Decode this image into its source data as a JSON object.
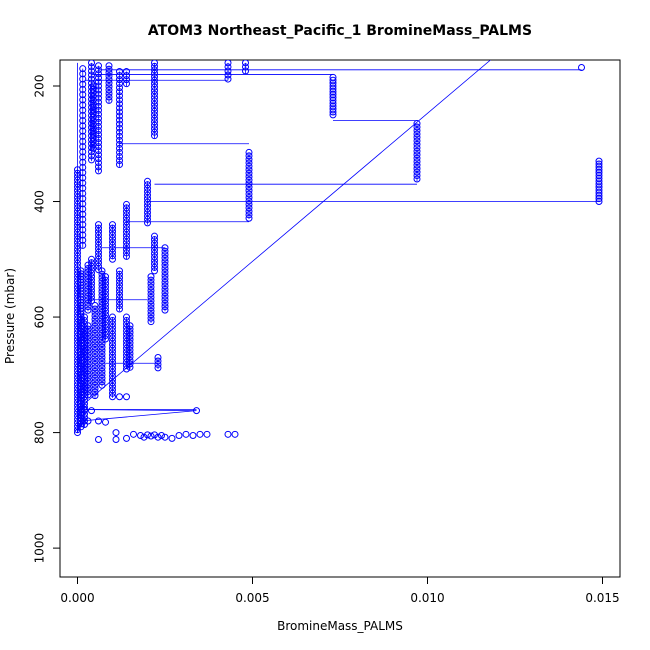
{
  "chart_data": {
    "type": "scatter",
    "title": "ATOM3 Northeast_Pacific_1 BromineMass_PALMS",
    "xlabel": "BromineMass_PALMS",
    "ylabel": "Pressure (mbar)",
    "xlim": [
      -0.0005,
      0.0155
    ],
    "ylim": [
      1050,
      155
    ],
    "y_reversed": true,
    "x_ticks": [
      0.0,
      0.005,
      0.01,
      0.015
    ],
    "x_tick_labels": [
      "0.000",
      "0.005",
      "0.010",
      "0.015"
    ],
    "y_ticks": [
      200,
      400,
      600,
      800,
      1000
    ],
    "y_tick_labels": [
      "200",
      "400",
      "600",
      "800",
      "1000"
    ],
    "color": "#0000ff",
    "marker": "open-circle",
    "connected_line": true,
    "grid": false,
    "series_columns": [
      {
        "x": 0.0,
        "p_from": 345,
        "p_to": 800,
        "step": 6
      },
      {
        "x": 0.0001,
        "p_from": 520,
        "p_to": 790,
        "step": 5
      },
      {
        "x": 0.0002,
        "p_from": 600,
        "p_to": 790,
        "step": 6
      },
      {
        "x": 0.00015,
        "p_from": 170,
        "p_to": 480,
        "step": 9
      },
      {
        "x": 0.0003,
        "p_from": 615,
        "p_to": 740,
        "step": 6
      },
      {
        "x": 0.0004,
        "p_from": 160,
        "p_to": 330,
        "step": 7
      },
      {
        "x": 0.00045,
        "p_from": 200,
        "p_to": 310,
        "step": 6
      },
      {
        "x": 0.0003,
        "p_from": 510,
        "p_to": 590,
        "step": 6
      },
      {
        "x": 0.0004,
        "p_from": 500,
        "p_to": 575,
        "step": 6
      },
      {
        "x": 0.0005,
        "p_from": 580,
        "p_to": 740,
        "step": 6
      },
      {
        "x": 0.0006,
        "p_from": 165,
        "p_to": 350,
        "step": 7
      },
      {
        "x": 0.0006,
        "p_from": 440,
        "p_to": 520,
        "step": 6
      },
      {
        "x": 0.0007,
        "p_from": 520,
        "p_to": 720,
        "step": 6
      },
      {
        "x": 0.0008,
        "p_from": 530,
        "p_to": 640,
        "step": 6
      },
      {
        "x": 0.0009,
        "p_from": 165,
        "p_to": 230,
        "step": 6
      },
      {
        "x": 0.001,
        "p_from": 440,
        "p_to": 500,
        "step": 6
      },
      {
        "x": 0.001,
        "p_from": 600,
        "p_to": 740,
        "step": 6
      },
      {
        "x": 0.0012,
        "p_from": 520,
        "p_to": 590,
        "step": 6
      },
      {
        "x": 0.0012,
        "p_from": 175,
        "p_to": 340,
        "step": 7
      },
      {
        "x": 0.0014,
        "p_from": 175,
        "p_to": 200,
        "step": 7
      },
      {
        "x": 0.0014,
        "p_from": 405,
        "p_to": 500,
        "step": 6
      },
      {
        "x": 0.0014,
        "p_from": 600,
        "p_to": 690,
        "step": 6
      },
      {
        "x": 0.0015,
        "p_from": 615,
        "p_to": 690,
        "step": 6
      },
      {
        "x": 0.002,
        "p_from": 365,
        "p_to": 440,
        "step": 6
      },
      {
        "x": 0.0021,
        "p_from": 530,
        "p_to": 610,
        "step": 6
      },
      {
        "x": 0.0022,
        "p_from": 160,
        "p_to": 290,
        "step": 6
      },
      {
        "x": 0.0022,
        "p_from": 460,
        "p_to": 520,
        "step": 6
      },
      {
        "x": 0.0023,
        "p_from": 670,
        "p_to": 690,
        "step": 6
      },
      {
        "x": 0.0025,
        "p_from": 480,
        "p_to": 590,
        "step": 6
      },
      {
        "x": 0.0043,
        "p_from": 160,
        "p_to": 190,
        "step": 7
      },
      {
        "x": 0.0048,
        "p_from": 160,
        "p_to": 180,
        "step": 7
      },
      {
        "x": 0.0049,
        "p_from": 315,
        "p_to": 430,
        "step": 6
      },
      {
        "x": 0.0073,
        "p_from": 190,
        "p_to": 250,
        "step": 5
      },
      {
        "x": 0.0097,
        "p_from": 265,
        "p_to": 365,
        "step": 6
      },
      {
        "x": 0.0149,
        "p_from": 330,
        "p_to": 400,
        "step": 5
      }
    ],
    "scatter_points": [
      {
        "x": 0.0,
        "y": 800
      },
      {
        "x": 0.0003,
        "y": 780
      },
      {
        "x": 0.0006,
        "y": 780
      },
      {
        "x": 0.0008,
        "y": 782
      },
      {
        "x": 0.0002,
        "y": 760
      },
      {
        "x": 0.0004,
        "y": 762
      },
      {
        "x": 0.0034,
        "y": 762
      },
      {
        "x": 0.0012,
        "y": 738
      },
      {
        "x": 0.0014,
        "y": 738
      },
      {
        "x": 0.0006,
        "y": 812
      },
      {
        "x": 0.0011,
        "y": 812
      },
      {
        "x": 0.0014,
        "y": 810
      },
      {
        "x": 0.0018,
        "y": 805
      },
      {
        "x": 0.0019,
        "y": 808
      },
      {
        "x": 0.002,
        "y": 804
      },
      {
        "x": 0.0021,
        "y": 806
      },
      {
        "x": 0.0022,
        "y": 804
      },
      {
        "x": 0.0023,
        "y": 808
      },
      {
        "x": 0.0024,
        "y": 805
      },
      {
        "x": 0.0025,
        "y": 808
      },
      {
        "x": 0.0027,
        "y": 810
      },
      {
        "x": 0.0029,
        "y": 805
      },
      {
        "x": 0.0031,
        "y": 803
      },
      {
        "x": 0.0033,
        "y": 805
      },
      {
        "x": 0.0035,
        "y": 803
      },
      {
        "x": 0.0037,
        "y": 803
      },
      {
        "x": 0.0043,
        "y": 803
      },
      {
        "x": 0.0045,
        "y": 803
      },
      {
        "x": 0.0011,
        "y": 800
      },
      {
        "x": 0.0016,
        "y": 803
      },
      {
        "x": 0.0144,
        "y": 168
      },
      {
        "x": 0.0073,
        "y": 185
      }
    ],
    "connector_path": [
      {
        "x": 0.0,
        "y": 160
      },
      {
        "x": 0.0,
        "y": 800
      },
      {
        "x": 0.0001,
        "y": 780
      },
      {
        "x": 0.0034,
        "y": 762
      },
      {
        "x": 0.0,
        "y": 760
      },
      {
        "x": 0.0118,
        "y": 155
      }
    ],
    "horizontal_links": [
      {
        "x1": 0.0006,
        "x2": 0.0144,
        "y": 172
      },
      {
        "x1": 0.0004,
        "x2": 0.0073,
        "y": 180
      },
      {
        "x1": 0.0002,
        "x2": 0.0043,
        "y": 190
      },
      {
        "x1": 0.0012,
        "x2": 0.0049,
        "y": 300
      },
      {
        "x1": 0.0022,
        "x2": 0.0097,
        "y": 370
      },
      {
        "x1": 0.002,
        "x2": 0.0149,
        "y": 400
      },
      {
        "x1": 0.0014,
        "x2": 0.0049,
        "y": 435
      },
      {
        "x1": 0.0007,
        "x2": 0.0025,
        "y": 480
      },
      {
        "x1": 0.0003,
        "x2": 0.002,
        "y": 570
      },
      {
        "x1": 0.0008,
        "x2": 0.0023,
        "y": 680
      },
      {
        "x1": 0.0002,
        "x2": 0.0034,
        "y": 760
      },
      {
        "x1": 0.0073,
        "x2": 0.0097,
        "y": 260
      }
    ]
  }
}
